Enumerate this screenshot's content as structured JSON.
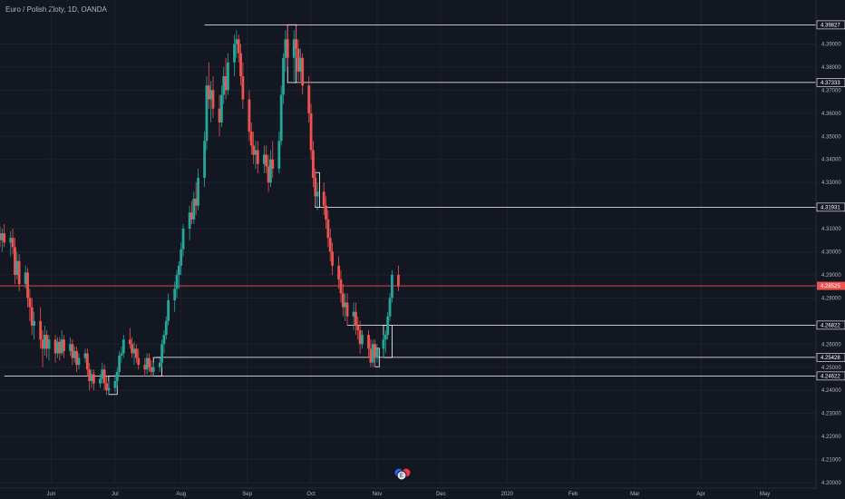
{
  "header": {
    "symbol_title": "Euro / Polish Zloty, 1D, OANDA"
  },
  "colors": {
    "background": "#131722",
    "grid": "#1e222d",
    "up": "#26a69a",
    "down": "#ef5350",
    "level": "#ffffff",
    "price_line": "#ef5350",
    "axis_text": "#b2b5be"
  },
  "events_badge": {
    "text": "E"
  },
  "chart_data": {
    "type": "candlestick",
    "title": "Euro / Polish Zloty, 1D, OANDA",
    "ylim": [
      4.2,
      4.4
    ],
    "y_ticks": [
      "4.39000",
      "4.38000",
      "4.37000",
      "4.36000",
      "4.35000",
      "4.34000",
      "4.33000",
      "4.31000",
      "4.30000",
      "4.29000",
      "4.28000",
      "4.26000",
      "4.25000",
      "4.24000",
      "4.23000",
      "4.22000",
      "4.21000",
      "4.20000"
    ],
    "y_tick_values": [
      4.39,
      4.38,
      4.37,
      4.36,
      4.35,
      4.34,
      4.33,
      4.31,
      4.3,
      4.29,
      4.28,
      4.26,
      4.25,
      4.24,
      4.23,
      4.22,
      4.21,
      4.2
    ],
    "x_ticks": [
      "Jun",
      "Jul",
      "Aug",
      "Sep",
      "Oct",
      "Nov",
      "Dec",
      "2020",
      "Feb",
      "Mar",
      "Apr",
      "May"
    ],
    "x_tick_dates": [
      "2019-06-01",
      "2019-07-01",
      "2019-08-01",
      "2019-09-01",
      "2019-10-01",
      "2019-11-01",
      "2019-12-01",
      "2020-01-01",
      "2020-02-01",
      "2020-03-01",
      "2020-04-01",
      "2020-05-01"
    ],
    "x_range": [
      "2019-05-08",
      "2020-05-25"
    ],
    "current_price": {
      "label": "4.28525",
      "value": 4.28525
    },
    "levels": [
      {
        "label": "4.39827",
        "value": 4.39827,
        "start": "2019-08-12"
      },
      {
        "label": "4.37333",
        "value": 4.37333,
        "start": "2019-09-23"
      },
      {
        "label": "4.31931",
        "value": 4.31931,
        "start": "2019-10-03"
      },
      {
        "label": "4.26822",
        "value": 4.26822,
        "start": "2019-10-18"
      },
      {
        "label": "4.25428",
        "value": 4.25428,
        "start": "2019-07-20"
      },
      {
        "label": "4.24622",
        "value": 4.24622,
        "start": "2019-05-10"
      }
    ],
    "zones": [
      {
        "start": "2019-06-28",
        "end": "2019-07-02",
        "high": 4.2462,
        "low": 4.2382
      },
      {
        "start": "2019-07-19",
        "end": "2019-07-23",
        "high": 4.2542,
        "low": 4.2462
      },
      {
        "start": "2019-09-20",
        "end": "2019-09-24",
        "high": 4.3983,
        "low": 4.3733
      },
      {
        "start": "2019-10-03",
        "end": "2019-10-05",
        "high": 4.3343,
        "low": 4.3193
      },
      {
        "start": "2019-10-31",
        "end": "2019-11-02",
        "high": 4.2582,
        "low": 4.2502
      },
      {
        "start": "2019-11-04",
        "end": "2019-11-08",
        "high": 4.2682,
        "low": 4.2542
      }
    ],
    "series": [
      {
        "candles": [
          [
            "2019-05-08",
            4.308,
            4.311,
            4.302,
            4.305
          ],
          [
            "2019-05-09",
            4.305,
            4.31,
            4.3,
            4.308
          ],
          [
            "2019-05-10",
            4.308,
            4.312,
            4.302,
            4.304
          ],
          [
            "2019-05-13",
            4.304,
            4.309,
            4.298,
            4.306
          ],
          [
            "2019-05-14",
            4.306,
            4.31,
            4.299,
            4.302
          ],
          [
            "2019-05-15",
            4.302,
            4.306,
            4.286,
            4.29
          ],
          [
            "2019-05-16",
            4.29,
            4.3,
            4.288,
            4.296
          ],
          [
            "2019-05-17",
            4.296,
            4.299,
            4.283,
            4.286
          ],
          [
            "2019-05-20",
            4.286,
            4.294,
            4.284,
            4.291
          ],
          [
            "2019-05-21",
            4.291,
            4.293,
            4.276,
            4.28
          ],
          [
            "2019-05-22",
            4.28,
            4.284,
            4.27,
            4.276
          ],
          [
            "2019-05-23",
            4.276,
            4.28,
            4.264,
            4.268
          ],
          [
            "2019-05-24",
            4.268,
            4.274,
            4.262,
            4.27
          ],
          [
            "2019-05-27",
            4.27,
            4.276,
            4.258,
            4.262
          ],
          [
            "2019-05-28",
            4.262,
            4.266,
            4.25,
            4.258
          ],
          [
            "2019-05-29",
            4.258,
            4.268,
            4.255,
            4.264
          ],
          [
            "2019-05-30",
            4.264,
            4.266,
            4.254,
            4.258
          ],
          [
            "2019-05-31",
            4.258,
            4.264,
            4.253,
            4.262
          ],
          [
            "2019-06-03",
            4.262,
            4.264,
            4.252,
            4.256
          ],
          [
            "2019-06-04",
            4.256,
            4.263,
            4.254,
            4.261
          ],
          [
            "2019-06-05",
            4.261,
            4.263,
            4.253,
            4.256
          ],
          [
            "2019-06-06",
            4.256,
            4.266,
            4.255,
            4.262
          ],
          [
            "2019-06-07",
            4.262,
            4.264,
            4.254,
            4.257
          ],
          [
            "2019-06-10",
            4.257,
            4.263,
            4.255,
            4.26
          ],
          [
            "2019-06-11",
            4.26,
            4.262,
            4.251,
            4.254
          ],
          [
            "2019-06-12",
            4.254,
            4.259,
            4.252,
            4.257
          ],
          [
            "2019-06-13",
            4.257,
            4.259,
            4.248,
            4.251
          ],
          [
            "2019-06-14",
            4.251,
            4.256,
            4.249,
            4.254
          ],
          [
            "2019-06-17",
            4.254,
            4.258,
            4.252,
            4.256
          ],
          [
            "2019-06-18",
            4.256,
            4.258,
            4.246,
            4.249
          ],
          [
            "2019-06-19",
            4.249,
            4.252,
            4.24,
            4.244
          ],
          [
            "2019-06-20",
            4.244,
            4.249,
            4.241,
            4.247
          ],
          [
            "2019-06-21",
            4.247,
            4.249,
            4.24,
            4.243
          ],
          [
            "2019-06-24",
            4.243,
            4.247,
            4.241,
            4.245
          ],
          [
            "2019-06-25",
            4.245,
            4.252,
            4.243,
            4.249
          ],
          [
            "2019-06-26",
            4.249,
            4.251,
            4.24,
            4.243
          ],
          [
            "2019-06-27",
            4.243,
            4.246,
            4.238,
            4.24
          ],
          [
            "2019-06-28",
            4.24,
            4.244,
            4.238,
            4.241
          ],
          [
            "2019-07-01",
            4.241,
            4.247,
            4.239,
            4.244
          ],
          [
            "2019-07-02",
            4.244,
            4.25,
            4.242,
            4.248
          ],
          [
            "2019-07-03",
            4.248,
            4.257,
            4.246,
            4.255
          ],
          [
            "2019-07-04",
            4.255,
            4.259,
            4.252,
            4.256
          ],
          [
            "2019-07-05",
            4.256,
            4.264,
            4.254,
            4.262
          ],
          [
            "2019-07-08",
            4.262,
            4.267,
            4.258,
            4.26
          ],
          [
            "2019-07-09",
            4.26,
            4.263,
            4.254,
            4.256
          ],
          [
            "2019-07-10",
            4.256,
            4.261,
            4.251,
            4.258
          ],
          [
            "2019-07-11",
            4.258,
            4.26,
            4.252,
            4.254
          ],
          [
            "2019-07-12",
            4.254,
            4.258,
            4.249,
            4.251
          ],
          [
            "2019-07-15",
            4.251,
            4.254,
            4.246,
            4.249
          ],
          [
            "2019-07-16",
            4.249,
            4.256,
            4.247,
            4.254
          ],
          [
            "2019-07-17",
            4.254,
            4.256,
            4.248,
            4.25
          ],
          [
            "2019-07-18",
            4.25,
            4.253,
            4.246,
            4.248
          ],
          [
            "2019-07-19",
            4.248,
            4.252,
            4.246,
            4.25
          ],
          [
            "2019-07-22",
            4.25,
            4.254,
            4.248,
            4.252
          ],
          [
            "2019-07-23",
            4.252,
            4.262,
            4.25,
            4.26
          ],
          [
            "2019-07-24",
            4.26,
            4.266,
            4.256,
            4.264
          ],
          [
            "2019-07-25",
            4.264,
            4.272,
            4.262,
            4.27
          ],
          [
            "2019-07-26",
            4.27,
            4.282,
            4.268,
            4.279
          ],
          [
            "2019-07-29",
            4.279,
            4.287,
            4.274,
            4.284
          ],
          [
            "2019-07-30",
            4.284,
            4.292,
            4.28,
            4.29
          ],
          [
            "2019-07-31",
            4.29,
            4.296,
            4.284,
            4.294
          ],
          [
            "2019-08-01",
            4.294,
            4.304,
            4.29,
            4.301
          ],
          [
            "2019-08-02",
            4.301,
            4.312,
            4.298,
            4.31
          ],
          [
            "2019-08-05",
            4.31,
            4.32,
            4.305,
            4.317
          ],
          [
            "2019-08-06",
            4.317,
            4.322,
            4.312,
            4.314
          ],
          [
            "2019-08-07",
            4.314,
            4.326,
            4.312,
            4.323
          ],
          [
            "2019-08-08",
            4.323,
            4.33,
            4.316,
            4.32
          ],
          [
            "2019-08-09",
            4.32,
            4.336,
            4.318,
            4.332
          ],
          [
            "2019-08-12",
            4.332,
            4.352,
            4.328,
            4.348
          ],
          [
            "2019-08-13",
            4.348,
            4.376,
            4.344,
            4.372
          ],
          [
            "2019-08-14",
            4.372,
            4.382,
            4.362,
            4.366
          ],
          [
            "2019-08-15",
            4.366,
            4.374,
            4.356,
            4.37
          ],
          [
            "2019-08-16",
            4.37,
            4.376,
            4.358,
            4.362
          ],
          [
            "2019-08-19",
            4.362,
            4.368,
            4.35,
            4.356
          ],
          [
            "2019-08-20",
            4.356,
            4.372,
            4.354,
            4.368
          ],
          [
            "2019-08-21",
            4.368,
            4.38,
            4.364,
            4.376
          ],
          [
            "2019-08-22",
            4.376,
            4.384,
            4.366,
            4.37
          ],
          [
            "2019-08-23",
            4.37,
            4.386,
            4.368,
            4.382
          ],
          [
            "2019-08-26",
            4.382,
            4.394,
            4.376,
            4.39
          ],
          [
            "2019-08-27",
            4.39,
            4.396,
            4.384,
            4.392
          ],
          [
            "2019-08-28",
            4.392,
            4.394,
            4.382,
            4.386
          ],
          [
            "2019-08-29",
            4.386,
            4.39,
            4.372,
            4.376
          ],
          [
            "2019-08-30",
            4.376,
            4.382,
            4.362,
            4.366
          ],
          [
            "2019-09-02",
            4.366,
            4.37,
            4.348,
            4.352
          ],
          [
            "2019-09-03",
            4.352,
            4.356,
            4.342,
            4.346
          ],
          [
            "2019-09-04",
            4.346,
            4.352,
            4.338,
            4.342
          ],
          [
            "2019-09-05",
            4.342,
            4.348,
            4.336,
            4.344
          ],
          [
            "2019-09-06",
            4.344,
            4.348,
            4.334,
            4.338
          ],
          [
            "2019-09-09",
            4.338,
            4.346,
            4.334,
            4.342
          ],
          [
            "2019-09-10",
            4.342,
            4.346,
            4.334,
            4.337
          ],
          [
            "2019-09-11",
            4.337,
            4.342,
            4.326,
            4.33
          ],
          [
            "2019-09-12",
            4.33,
            4.344,
            4.328,
            4.34
          ],
          [
            "2019-09-13",
            4.34,
            4.348,
            4.332,
            4.336
          ],
          [
            "2019-09-16",
            4.336,
            4.352,
            4.334,
            4.348
          ],
          [
            "2019-09-17",
            4.348,
            4.372,
            4.346,
            4.368
          ],
          [
            "2019-09-18",
            4.368,
            4.386,
            4.364,
            4.384
          ],
          [
            "2019-09-19",
            4.384,
            4.396,
            4.378,
            4.392
          ],
          [
            "2019-09-20",
            4.392,
            4.398,
            4.38,
            4.384
          ],
          [
            "2019-09-23",
            4.384,
            4.396,
            4.374,
            4.392
          ],
          [
            "2019-09-24",
            4.392,
            4.398,
            4.384,
            4.388
          ],
          [
            "2019-09-25",
            4.388,
            4.392,
            4.374,
            4.378
          ],
          [
            "2019-09-26",
            4.378,
            4.388,
            4.374,
            4.384
          ],
          [
            "2019-09-27",
            4.384,
            4.386,
            4.368,
            4.372
          ],
          [
            "2019-09-30",
            4.372,
            4.376,
            4.356,
            4.36
          ],
          [
            "2019-10-01",
            4.36,
            4.364,
            4.34,
            4.344
          ],
          [
            "2019-10-02",
            4.344,
            4.348,
            4.328,
            4.332
          ],
          [
            "2019-10-03",
            4.332,
            4.336,
            4.32,
            4.324
          ],
          [
            "2019-10-04",
            4.324,
            4.33,
            4.318,
            4.326
          ],
          [
            "2019-10-07",
            4.326,
            4.33,
            4.316,
            4.32
          ],
          [
            "2019-10-08",
            4.32,
            4.324,
            4.31,
            4.314
          ],
          [
            "2019-10-09",
            4.314,
            4.318,
            4.302,
            4.306
          ],
          [
            "2019-10-10",
            4.306,
            4.31,
            4.296,
            4.3
          ],
          [
            "2019-10-11",
            4.3,
            4.304,
            4.29,
            4.294
          ],
          [
            "2019-10-14",
            4.294,
            4.298,
            4.284,
            4.288
          ],
          [
            "2019-10-15",
            4.288,
            4.292,
            4.278,
            4.282
          ],
          [
            "2019-10-16",
            4.282,
            4.286,
            4.272,
            4.276
          ],
          [
            "2019-10-17",
            4.276,
            4.282,
            4.27,
            4.278
          ],
          [
            "2019-10-18",
            4.278,
            4.282,
            4.268,
            4.272
          ],
          [
            "2019-10-21",
            4.272,
            4.278,
            4.266,
            4.274
          ],
          [
            "2019-10-22",
            4.274,
            4.278,
            4.264,
            4.268
          ],
          [
            "2019-10-23",
            4.268,
            4.272,
            4.262,
            4.266
          ],
          [
            "2019-10-24",
            4.266,
            4.27,
            4.256,
            4.26
          ],
          [
            "2019-10-25",
            4.26,
            4.266,
            4.258,
            4.264
          ],
          [
            "2019-10-28",
            4.264,
            4.266,
            4.254,
            4.258
          ],
          [
            "2019-10-29",
            4.258,
            4.262,
            4.25,
            4.252
          ],
          [
            "2019-10-30",
            4.252,
            4.262,
            4.25,
            4.26
          ],
          [
            "2019-10-31",
            4.26,
            4.262,
            4.25,
            4.254
          ],
          [
            "2019-11-01",
            4.254,
            4.26,
            4.252,
            4.258
          ],
          [
            "2019-11-04",
            4.258,
            4.264,
            4.254,
            4.262
          ],
          [
            "2019-11-05",
            4.262,
            4.266,
            4.256,
            4.264
          ],
          [
            "2019-11-06",
            4.264,
            4.274,
            4.262,
            4.272
          ],
          [
            "2019-11-07",
            4.272,
            4.282,
            4.27,
            4.28
          ],
          [
            "2019-11-08",
            4.28,
            4.292,
            4.278,
            4.29
          ],
          [
            "2019-11-11",
            4.29,
            4.294,
            4.283,
            4.285
          ]
        ]
      }
    ]
  }
}
